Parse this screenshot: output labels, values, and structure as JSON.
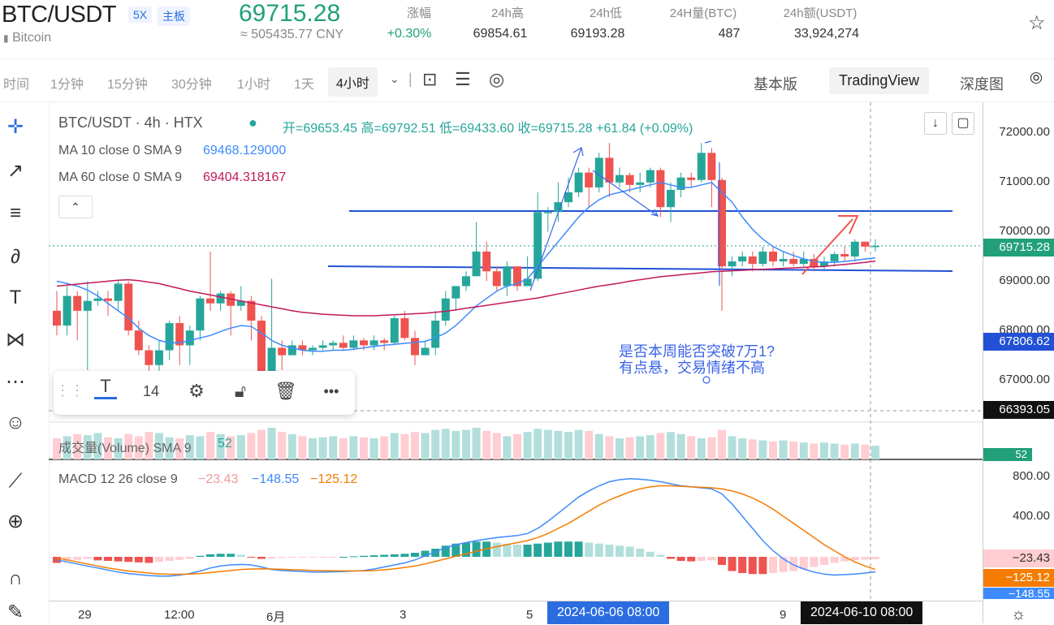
{
  "header": {
    "symbol": "BTC/USDT",
    "leverage": "5X",
    "board": "主板",
    "name": "Bitcoin",
    "price": "69715.28",
    "cny": "≈ 505435.77 CNY",
    "stats": [
      {
        "label": "涨幅",
        "value": "+0.30%"
      },
      {
        "label": "24h高",
        "value": "69854.61"
      },
      {
        "label": "24h低",
        "value": "69193.28"
      },
      {
        "label": "24H量(BTC)",
        "value": "487"
      },
      {
        "label": "24h额(USDT)",
        "value": "33,924,274"
      }
    ]
  },
  "toolbar": {
    "timeframes": [
      "时间",
      "1分钟",
      "15分钟",
      "30分钟",
      "1小时",
      "1天",
      "4小时"
    ],
    "active_timeframe": "4小时",
    "views": [
      "基本版",
      "TradingView",
      "深度图"
    ],
    "active_view": "TradingView"
  },
  "legend": {
    "title": "BTC/USDT · 4h · HTX",
    "ohlc": "开=69653.45 高=69792.51 低=69433.60 收=69715.28 +61.84 (+0.09%)",
    "ma10_label": "MA 10 close 0 SMA 9",
    "ma10_value": "69468.129000",
    "ma60_label": "MA 60 close 0 SMA 9",
    "ma60_value": "69404.318167",
    "volume_label": "成交量(Volume) SMA 9",
    "volume_value": "52",
    "macd_label": "MACD 12 26 close 9",
    "macd_hist": "−23.43",
    "macd_line": "−148.55",
    "macd_signal": "−125.12"
  },
  "annotation": {
    "line1": "是否本周能否突破7万1?",
    "line2": "有点悬，交易情绪不高"
  },
  "text_toolbar": {
    "font_size": "14"
  },
  "price_axis": {
    "ticks": [
      "72000.00",
      "71000.00",
      "70000.00",
      "69000.00",
      "68000.00",
      "67000.00"
    ],
    "current": "69715.28",
    "marker1": "67806.62",
    "marker2": "66393.05",
    "volume_badge": "52",
    "macd_ticks": [
      "800.00",
      "400.00"
    ],
    "macd_hist": "−23.43",
    "macd_signal": "−125.12",
    "macd_line": "−148.55"
  },
  "time_axis": {
    "labels": [
      "29",
      "12:00",
      "6月",
      "3",
      "5",
      "9"
    ],
    "crosshair_a": "2024-06-06   08:00",
    "crosshair_b": "2024-06-10   08:00"
  },
  "colors": {
    "up": "#26a69a",
    "down": "#ef5350",
    "ma10": "#3d8bfd",
    "ma60": "#c2185b",
    "hline": "#2251d6",
    "annotation": "#3b64e8",
    "macd_signal": "#f57c00"
  },
  "chart_data": {
    "type": "candlestick",
    "candles": [
      [
        68400,
        68100,
        68800,
        67900
      ],
      [
        68100,
        68700,
        68900,
        67900
      ],
      [
        68700,
        68400,
        68800,
        67800
      ],
      [
        68400,
        68600,
        69000,
        67200
      ],
      [
        68600,
        68650,
        68800,
        68500
      ],
      [
        68650,
        68600,
        68800,
        68300
      ],
      [
        68600,
        68950,
        69000,
        68400
      ],
      [
        68950,
        68000,
        69000,
        67900
      ],
      [
        68000,
        67600,
        68200,
        67500
      ],
      [
        67600,
        67300,
        67700,
        67000
      ],
      [
        67300,
        67600,
        67800,
        67000
      ],
      [
        67600,
        68150,
        68200,
        67400
      ],
      [
        68150,
        67700,
        68300,
        67300
      ],
      [
        67700,
        68000,
        68100,
        67300
      ],
      [
        68000,
        68650,
        68700,
        67800
      ],
      [
        68650,
        68550,
        69600,
        68400
      ],
      [
        68550,
        68750,
        68800,
        68400
      ],
      [
        68750,
        68500,
        68800,
        67900
      ],
      [
        68500,
        68600,
        68900,
        68400
      ],
      [
        68600,
        68200,
        68700,
        67800
      ],
      [
        68200,
        67100,
        68300,
        67000
      ],
      [
        67100,
        67650,
        69050,
        67000
      ],
      [
        67650,
        67500,
        67800,
        67200
      ],
      [
        67500,
        67700,
        67800,
        67500
      ],
      [
        67700,
        67600,
        67800,
        67500
      ],
      [
        67600,
        67650,
        67700,
        67500
      ],
      [
        67650,
        67700,
        67800,
        67600
      ],
      [
        67700,
        67750,
        67800,
        67600
      ],
      [
        67750,
        67650,
        67900,
        67600
      ],
      [
        67650,
        67800,
        67900,
        67600
      ],
      [
        67800,
        67700,
        67850,
        67600
      ],
      [
        67700,
        67800,
        67900,
        67600
      ],
      [
        67800,
        67750,
        67850,
        67600
      ],
      [
        67750,
        68250,
        68300,
        67700
      ],
      [
        68250,
        67850,
        68400,
        67800
      ],
      [
        67850,
        67500,
        68000,
        67300
      ],
      [
        67500,
        67650,
        67800,
        67500
      ],
      [
        67650,
        68200,
        68400,
        67500
      ],
      [
        68200,
        68650,
        68800,
        68100
      ],
      [
        68650,
        68900,
        68900,
        68400
      ],
      [
        68900,
        69100,
        69200,
        68800
      ],
      [
        69100,
        69600,
        70200,
        69100
      ],
      [
        69600,
        69200,
        69800,
        69000
      ],
      [
        69200,
        68900,
        69300,
        68800
      ],
      [
        68900,
        69300,
        69400,
        68700
      ],
      [
        69300,
        68900,
        69300,
        68800
      ],
      [
        68900,
        69050,
        69500,
        68900
      ],
      [
        69050,
        70400,
        70800,
        69000
      ],
      [
        70400,
        70400,
        70500,
        70000
      ],
      [
        70400,
        70600,
        71000,
        70200
      ],
      [
        70600,
        70800,
        71100,
        70500
      ],
      [
        70800,
        71200,
        71300,
        70700
      ],
      [
        71200,
        70900,
        71300,
        70500
      ],
      [
        70900,
        71500,
        71600,
        70800
      ],
      [
        71500,
        71000,
        71800,
        70700
      ],
      [
        71000,
        71150,
        71300,
        70900
      ],
      [
        71150,
        70950,
        71200,
        70800
      ],
      [
        70950,
        71000,
        71200,
        70800
      ],
      [
        71000,
        71250,
        71300,
        70900
      ],
      [
        71250,
        70500,
        71300,
        70300
      ],
      [
        70500,
        70850,
        71000,
        70200
      ],
      [
        70850,
        71100,
        71200,
        70700
      ],
      [
        71100,
        71050,
        71200,
        70900
      ],
      [
        71050,
        71600,
        71800,
        71000
      ],
      [
        71600,
        71050,
        71700,
        70500
      ],
      [
        71050,
        69300,
        71100,
        68400
      ],
      [
        69300,
        69400,
        69500,
        69100
      ],
      [
        69400,
        69500,
        69600,
        69300
      ],
      [
        69500,
        69350,
        69600,
        69200
      ],
      [
        69350,
        69600,
        69700,
        69300
      ],
      [
        69600,
        69400,
        69700,
        69300
      ],
      [
        69400,
        69450,
        69600,
        69300
      ],
      [
        69450,
        69350,
        69600,
        69300
      ],
      [
        69350,
        69450,
        69600,
        69300
      ],
      [
        69450,
        69300,
        69550,
        69200
      ],
      [
        69300,
        69400,
        69500,
        69200
      ],
      [
        69400,
        69550,
        69600,
        69300
      ],
      [
        69550,
        69500,
        69700,
        69400
      ],
      [
        69500,
        69800,
        69850,
        69400
      ],
      [
        69800,
        69700,
        69800,
        69600
      ],
      [
        69700,
        69715,
        69850,
        69600
      ]
    ],
    "ma10": [
      69000,
      68950,
      68900,
      68820,
      68700,
      68550,
      68400,
      68250,
      68050,
      67900,
      67800,
      67750,
      67750,
      67800,
      67850,
      67900,
      67980,
      68050,
      68100,
      68080,
      67950,
      67800,
      67700,
      67650,
      67600,
      67580,
      67580,
      67600,
      67600,
      67620,
      67650,
      67680,
      67700,
      67720,
      67740,
      67760,
      67780,
      67850,
      67950,
      68100,
      68300,
      68500,
      68650,
      68800,
      68900,
      68950,
      69050,
      69300,
      69550,
      69800,
      70050,
      70300,
      70500,
      70650,
      70750,
      70800,
      70850,
      70900,
      70950,
      71000,
      70950,
      70900,
      70900,
      70950,
      71000,
      70800,
      70600,
      70300,
      70050,
      69850,
      69700,
      69600,
      69520,
      69450,
      69400,
      69380,
      69380,
      69400,
      69420,
      69450,
      69470
    ],
    "ma60": [
      68900,
      68920,
      68940,
      68960,
      68980,
      69000,
      69020,
      69030,
      69010,
      68980,
      68950,
      68900,
      68850,
      68800,
      68760,
      68720,
      68680,
      68640,
      68600,
      68560,
      68520,
      68480,
      68440,
      68400,
      68370,
      68350,
      68330,
      68320,
      68310,
      68300,
      68300,
      68300,
      68310,
      68320,
      68330,
      68340,
      68350,
      68370,
      68390,
      68420,
      68450,
      68480,
      68510,
      68540,
      68570,
      68600,
      68630,
      68660,
      68700,
      68740,
      68780,
      68820,
      68860,
      68900,
      68930,
      68960,
      69000,
      69030,
      69060,
      69090,
      69110,
      69130,
      69150,
      69170,
      69190,
      69200,
      69210,
      69220,
      69230,
      69240,
      69250,
      69260,
      69270,
      69280,
      69290,
      69300,
      69320,
      69340,
      69360,
      69380,
      69404
    ],
    "volume": [
      20,
      22,
      24,
      23,
      25,
      21,
      20,
      24,
      22,
      26,
      25,
      21,
      20,
      23,
      22,
      26,
      24,
      22,
      23,
      25,
      28,
      30,
      26,
      24,
      22,
      20,
      21,
      22,
      20,
      22,
      21,
      20,
      22,
      25,
      24,
      26,
      25,
      28,
      29,
      27,
      28,
      30,
      27,
      25,
      22,
      24,
      26,
      29,
      28,
      27,
      26,
      28,
      27,
      24,
      22,
      20,
      21,
      22,
      23,
      25,
      26,
      24,
      22,
      20,
      21,
      28,
      22,
      20,
      19,
      18,
      17,
      18,
      17,
      16,
      15,
      16,
      15,
      14,
      15,
      14,
      13
    ],
    "macd_hist": [
      -60,
      -40,
      -30,
      -20,
      -35,
      -40,
      -45,
      -50,
      -55,
      -60,
      -50,
      -40,
      -30,
      -20,
      10,
      25,
      30,
      30,
      20,
      -5,
      -20,
      -15,
      -10,
      -8,
      -5,
      -4,
      -3,
      -2,
      0,
      5,
      10,
      15,
      20,
      25,
      30,
      40,
      60,
      80,
      110,
      130,
      140,
      150,
      150,
      140,
      130,
      120,
      120,
      130,
      140,
      150,
      150,
      150,
      140,
      130,
      120,
      110,
      100,
      80,
      50,
      20,
      -20,
      -40,
      -45,
      -40,
      -35,
      -80,
      -140,
      -160,
      -170,
      -170,
      -160,
      -150,
      -140,
      -120,
      -100,
      -80,
      -60,
      -45,
      -35,
      -28,
      -23
    ],
    "macd_line": [
      -30,
      -50,
      -70,
      -90,
      -110,
      -130,
      -150,
      -165,
      -175,
      -185,
      -190,
      -190,
      -180,
      -165,
      -140,
      -110,
      -90,
      -80,
      -75,
      -80,
      -100,
      -125,
      -135,
      -140,
      -145,
      -150,
      -150,
      -148,
      -145,
      -140,
      -135,
      -120,
      -100,
      -80,
      -60,
      -30,
      10,
      50,
      90,
      120,
      140,
      160,
      175,
      190,
      200,
      210,
      230,
      280,
      350,
      430,
      510,
      590,
      650,
      700,
      740,
      760,
      770,
      765,
      755,
      740,
      720,
      700,
      690,
      680,
      670,
      620,
      520,
      400,
      280,
      160,
      60,
      -20,
      -80,
      -120,
      -150,
      -170,
      -180,
      -175,
      -170,
      -160,
      -148
    ],
    "macd_signal": [
      -10,
      -30,
      -50,
      -70,
      -90,
      -110,
      -125,
      -140,
      -150,
      -160,
      -168,
      -172,
      -172,
      -170,
      -165,
      -155,
      -145,
      -135,
      -125,
      -120,
      -118,
      -120,
      -123,
      -127,
      -130,
      -134,
      -136,
      -138,
      -139,
      -139,
      -138,
      -135,
      -128,
      -118,
      -105,
      -90,
      -70,
      -45,
      -20,
      5,
      30,
      55,
      80,
      100,
      120,
      140,
      160,
      190,
      230,
      280,
      330,
      390,
      450,
      510,
      560,
      600,
      640,
      670,
      690,
      700,
      700,
      695,
      690,
      685,
      680,
      670,
      650,
      620,
      580,
      530,
      470,
      400,
      330,
      260,
      190,
      120,
      60,
      0,
      -50,
      -90,
      -125
    ]
  }
}
